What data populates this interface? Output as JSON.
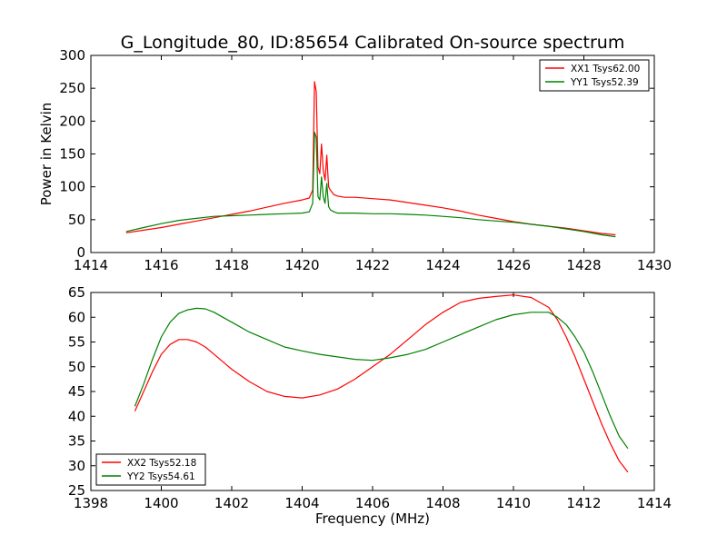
{
  "title": "G_Longitude_80, ID:85654 Calibrated On-source spectrum",
  "chart_data": [
    {
      "type": "line",
      "ylabel": "Power in Kelvin",
      "xlabel": "",
      "xlim": [
        1414,
        1430
      ],
      "ylim": [
        0,
        300
      ],
      "xticks": [
        1414,
        1416,
        1418,
        1420,
        1422,
        1424,
        1426,
        1428,
        1430
      ],
      "yticks": [
        0,
        50,
        100,
        150,
        200,
        250,
        300
      ],
      "legend_position": "top-right",
      "series": [
        {
          "name": "XX1 Tsys62.00",
          "color": "#ff0000",
          "x": [
            1415.0,
            1415.5,
            1416.0,
            1416.5,
            1417.0,
            1417.5,
            1418.0,
            1418.5,
            1419.0,
            1419.5,
            1420.0,
            1420.2,
            1420.3,
            1420.35,
            1420.4,
            1420.45,
            1420.5,
            1420.55,
            1420.6,
            1420.65,
            1420.7,
            1420.75,
            1420.8,
            1420.9,
            1421.0,
            1421.2,
            1421.5,
            1422.0,
            1422.5,
            1423.0,
            1423.5,
            1424.0,
            1424.5,
            1425.0,
            1425.5,
            1426.0,
            1426.5,
            1427.0,
            1427.5,
            1428.0,
            1428.5,
            1428.9
          ],
          "y": [
            30,
            34,
            38,
            43,
            48,
            53,
            58,
            63,
            69,
            75,
            80,
            83,
            95,
            260,
            245,
            130,
            120,
            165,
            125,
            110,
            148,
            100,
            95,
            88,
            86,
            84,
            84,
            82,
            80,
            76,
            72,
            68,
            63,
            57,
            52,
            47,
            43,
            40,
            37,
            33,
            29,
            27
          ]
        },
        {
          "name": "YY1 Tsys52.39",
          "color": "#008000",
          "x": [
            1415.0,
            1415.5,
            1416.0,
            1416.5,
            1417.0,
            1417.5,
            1418.0,
            1418.5,
            1419.0,
            1419.5,
            1420.0,
            1420.2,
            1420.3,
            1420.35,
            1420.4,
            1420.45,
            1420.5,
            1420.55,
            1420.6,
            1420.65,
            1420.7,
            1420.75,
            1420.8,
            1420.9,
            1421.0,
            1421.5,
            1422.0,
            1422.5,
            1423.0,
            1423.5,
            1424.0,
            1424.5,
            1425.0,
            1425.5,
            1426.0,
            1426.5,
            1427.0,
            1427.5,
            1428.0,
            1428.5,
            1428.9
          ],
          "y": [
            32,
            38,
            44,
            49,
            52,
            55,
            56,
            57,
            58,
            59,
            60,
            62,
            75,
            183,
            175,
            85,
            80,
            115,
            85,
            75,
            105,
            70,
            65,
            62,
            60,
            60,
            59,
            59,
            58,
            57,
            55,
            53,
            50,
            48,
            46,
            43,
            40,
            36,
            32,
            27,
            24
          ]
        }
      ]
    },
    {
      "type": "line",
      "xlabel": "Frequency (MHz)",
      "ylabel": "",
      "xlim": [
        1398,
        1414
      ],
      "ylim": [
        25,
        65
      ],
      "xticks": [
        1398,
        1400,
        1402,
        1404,
        1406,
        1408,
        1410,
        1412,
        1414
      ],
      "yticks": [
        25,
        30,
        35,
        40,
        45,
        50,
        55,
        60,
        65
      ],
      "legend_position": "bottom-left",
      "series": [
        {
          "name": "XX2 Tsys52.18",
          "color": "#ff0000",
          "x": [
            1399.25,
            1399.5,
            1399.75,
            1400.0,
            1400.25,
            1400.5,
            1400.75,
            1401.0,
            1401.25,
            1401.5,
            1401.75,
            1402.0,
            1402.5,
            1403.0,
            1403.5,
            1404.0,
            1404.5,
            1405.0,
            1405.5,
            1406.0,
            1406.5,
            1407.0,
            1407.5,
            1408.0,
            1408.5,
            1409.0,
            1409.5,
            1410.0,
            1410.5,
            1411.0,
            1411.25,
            1411.5,
            1411.75,
            1412.0,
            1412.25,
            1412.5,
            1412.75,
            1413.0,
            1413.25
          ],
          "y": [
            41,
            45,
            49,
            52.5,
            54.5,
            55.5,
            55.5,
            55,
            54,
            52.5,
            51,
            49.5,
            47,
            45,
            44,
            43.7,
            44.3,
            45.5,
            47.5,
            50,
            52.5,
            55.5,
            58.5,
            61,
            63,
            63.8,
            64.2,
            64.5,
            64,
            62,
            59.5,
            56,
            52,
            47.5,
            43,
            38.5,
            34.5,
            31,
            28.7
          ]
        },
        {
          "name": "YY2 Tsys54.61",
          "color": "#008000",
          "x": [
            1399.25,
            1399.5,
            1399.75,
            1400.0,
            1400.25,
            1400.5,
            1400.75,
            1401.0,
            1401.25,
            1401.5,
            1401.75,
            1402.0,
            1402.5,
            1403.0,
            1403.5,
            1404.0,
            1404.5,
            1405.0,
            1405.5,
            1406.0,
            1406.5,
            1407.0,
            1407.5,
            1408.0,
            1408.5,
            1409.0,
            1409.5,
            1410.0,
            1410.5,
            1411.0,
            1411.25,
            1411.5,
            1411.75,
            1412.0,
            1412.25,
            1412.5,
            1412.75,
            1413.0,
            1413.25
          ],
          "y": [
            42,
            46.5,
            51.5,
            56,
            59,
            60.8,
            61.5,
            61.8,
            61.7,
            61,
            60,
            59,
            57,
            55.5,
            54,
            53.2,
            52.5,
            52,
            51.5,
            51.3,
            51.8,
            52.5,
            53.5,
            55,
            56.5,
            58,
            59.5,
            60.5,
            61,
            61,
            60,
            58.5,
            56,
            53,
            49,
            44.5,
            40,
            36,
            33.5
          ]
        }
      ]
    }
  ]
}
